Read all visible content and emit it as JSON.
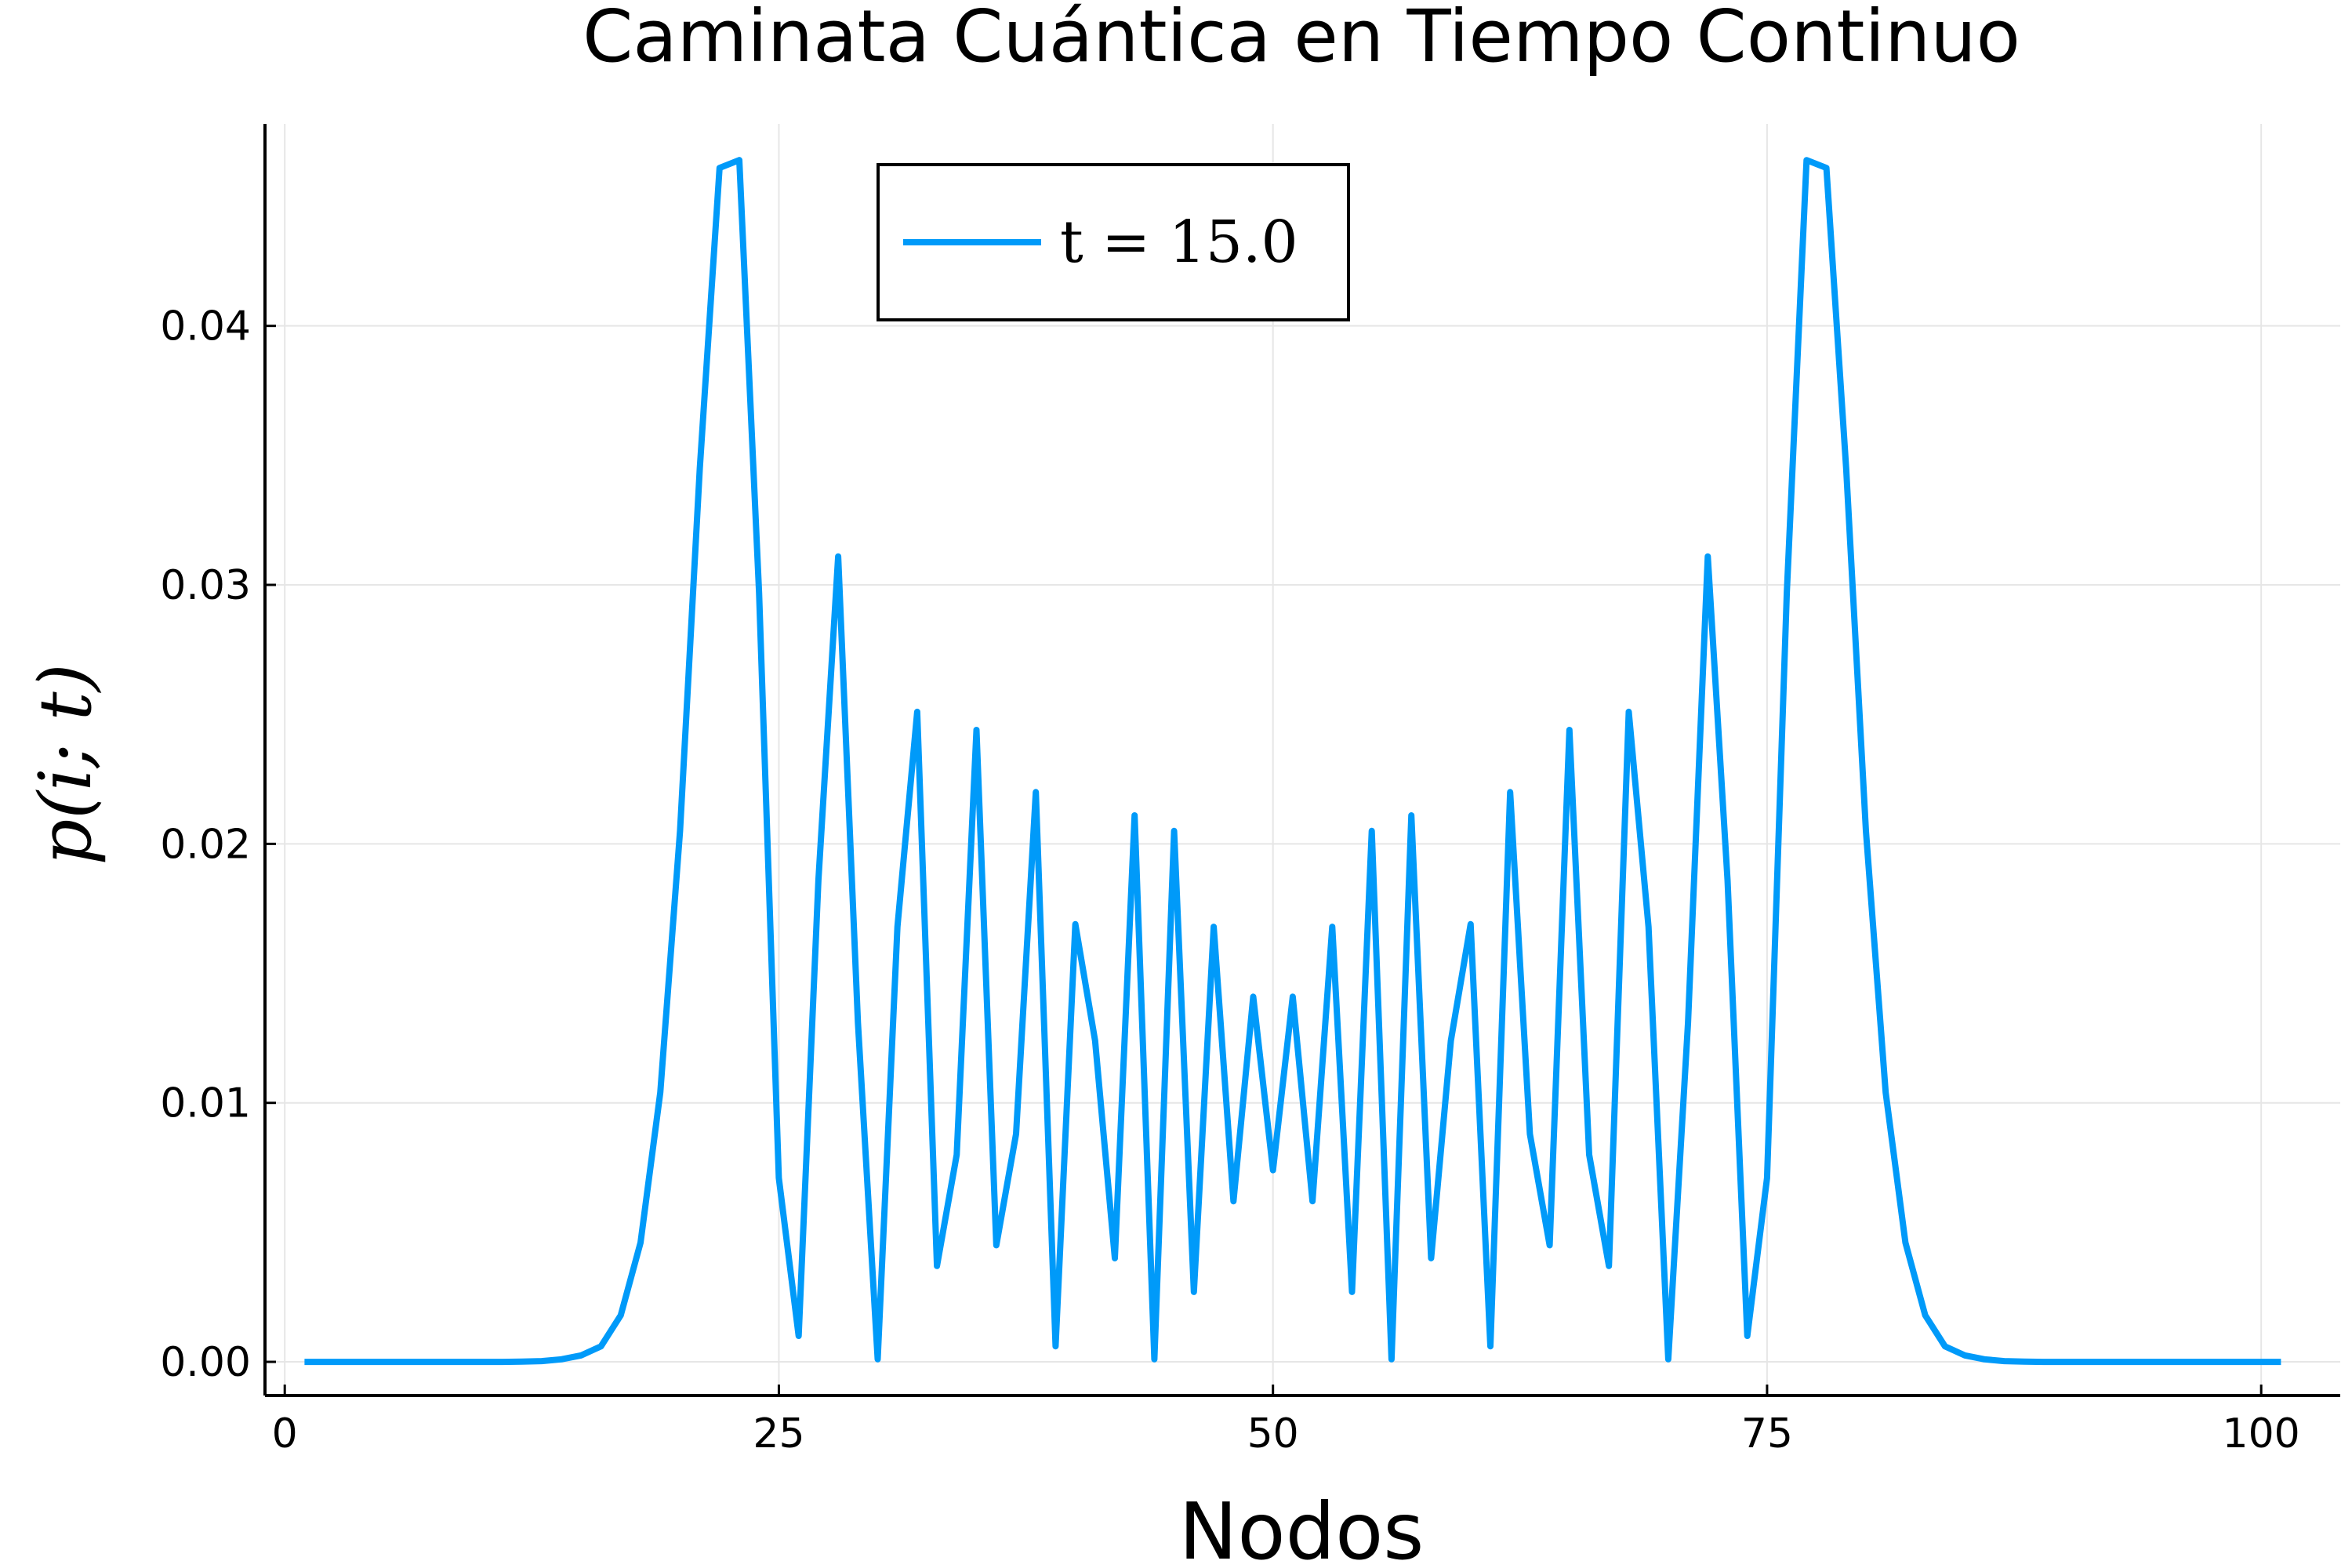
{
  "chart_data": {
    "type": "line",
    "title": "Caminata Cuántica en Tiempo Continuo",
    "xlabel": "Nodos",
    "ylabel": "p(i; t)",
    "xlim": [
      -1,
      104
    ],
    "ylim": [
      -0.0013,
      0.0478
    ],
    "xticks": [
      0,
      25,
      50,
      75,
      100
    ],
    "xtick_labels": [
      "0",
      "25",
      "50",
      "75",
      "100"
    ],
    "yticks": [
      0.0,
      0.01,
      0.02,
      0.03,
      0.04
    ],
    "ytick_labels": [
      "0.00",
      "0.01",
      "0.02",
      "0.03",
      "0.04"
    ],
    "grid": true,
    "legend_position": "top-center",
    "series": [
      {
        "name": "t = 15.0",
        "color": "#009af9",
        "x": [
          1,
          2,
          3,
          4,
          5,
          6,
          7,
          8,
          9,
          10,
          11,
          12,
          13,
          14,
          15,
          16,
          17,
          18,
          19,
          20,
          21,
          22,
          23,
          24,
          25,
          26,
          27,
          28,
          29,
          30,
          31,
          32,
          33,
          34,
          35,
          36,
          37,
          38,
          39,
          40,
          41,
          42,
          43,
          44,
          45,
          46,
          47,
          48,
          49,
          50,
          51,
          52,
          53,
          54,
          55,
          56,
          57,
          58,
          59,
          60,
          61,
          62,
          63,
          64,
          65,
          66,
          67,
          68,
          69,
          70,
          71,
          72,
          73,
          74,
          75,
          76,
          77,
          78,
          79,
          80,
          81,
          82,
          83,
          84,
          85,
          86,
          87,
          88,
          89,
          90,
          91,
          92,
          93,
          94,
          95,
          96,
          97,
          98,
          99,
          100,
          101
        ],
        "values": [
          0,
          0,
          0,
          0,
          0,
          0,
          0,
          0,
          0,
          0,
          0,
          1e-05,
          3e-05,
          0.0001,
          0.00025,
          0.0006,
          0.0018,
          0.0046,
          0.0104,
          0.0205,
          0.0345,
          0.0461,
          0.0464,
          0.0297,
          0.0071,
          0.001,
          0.0186,
          0.0311,
          0.0131,
          0.0001,
          0.0168,
          0.0251,
          0.0037,
          0.008,
          0.0244,
          0.0045,
          0.0088,
          0.022,
          0.0006,
          0.0169,
          0.0124,
          0.004,
          0.0211,
          0.0001,
          0.0205,
          0.0027,
          0.0168,
          0.0062,
          0.0141,
          0.0074,
          0.0141,
          0.0062,
          0.0168,
          0.0027,
          0.0205,
          0.0001,
          0.0211,
          0.004,
          0.0124,
          0.0169,
          0.0006,
          0.022,
          0.0088,
          0.0045,
          0.0244,
          0.008,
          0.0037,
          0.0251,
          0.0168,
          0.0001,
          0.0131,
          0.0311,
          0.0186,
          0.001,
          0.0071,
          0.0297,
          0.0464,
          0.0461,
          0.0345,
          0.0205,
          0.0104,
          0.0046,
          0.0018,
          0.0006,
          0.00025,
          0.0001,
          3e-05,
          1e-05,
          0,
          0,
          0,
          0,
          0,
          0,
          0,
          0,
          0,
          0,
          0,
          0,
          0
        ]
      }
    ]
  }
}
